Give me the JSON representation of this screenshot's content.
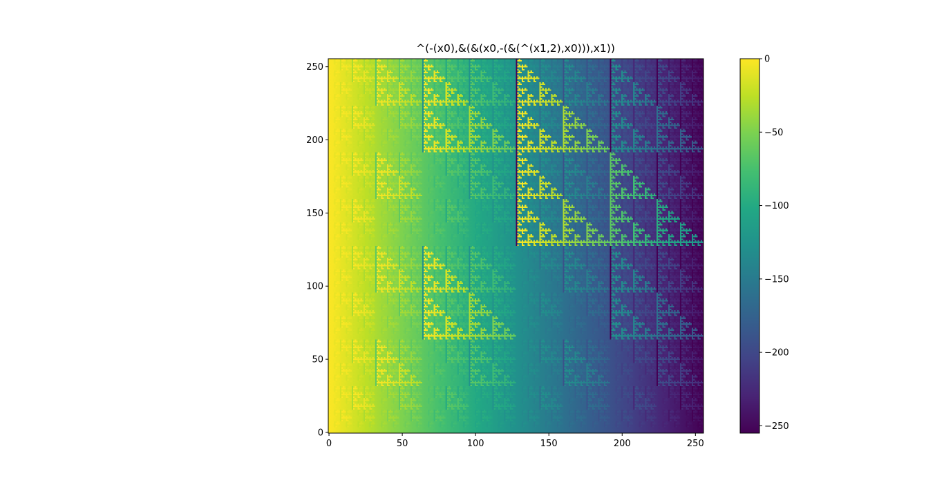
{
  "chart_data": {
    "type": "heatmap",
    "title": "^(-(x0),&(&(x0,-(&(^(x1,2),x0))),x1))",
    "xlabel": "",
    "ylabel": "",
    "grid_size": 256,
    "expression": {
      "x0": "column index 0..255",
      "x1": "row index 0..255 (origin lower)",
      "value": "(-x0) XOR ((x0 AND -((x1 XOR 2) AND x0)) AND x1)"
    },
    "xlim": [
      0,
      255
    ],
    "ylim": [
      0,
      255
    ],
    "xticks": [
      0,
      50,
      100,
      150,
      200,
      250
    ],
    "yticks": [
      0,
      50,
      100,
      150,
      200,
      250
    ],
    "colormap": "viridis",
    "colorbar": {
      "vmin": -255,
      "vmax": 0,
      "ticks": [
        0,
        -50,
        -100,
        -150,
        -200,
        -250
      ]
    },
    "grid": false,
    "legend": "none"
  },
  "text": {
    "title": "^(-(x0),&(&(x0,-(&(^(x1,2),x0))),x1))",
    "xtick_labels": [
      "0",
      "50",
      "100",
      "150",
      "200",
      "250"
    ],
    "ytick_labels": [
      "0",
      "50",
      "100",
      "150",
      "200",
      "250"
    ],
    "colorbar_tick_labels": [
      "0",
      "−50",
      "−100",
      "−150",
      "−200",
      "−250"
    ]
  }
}
